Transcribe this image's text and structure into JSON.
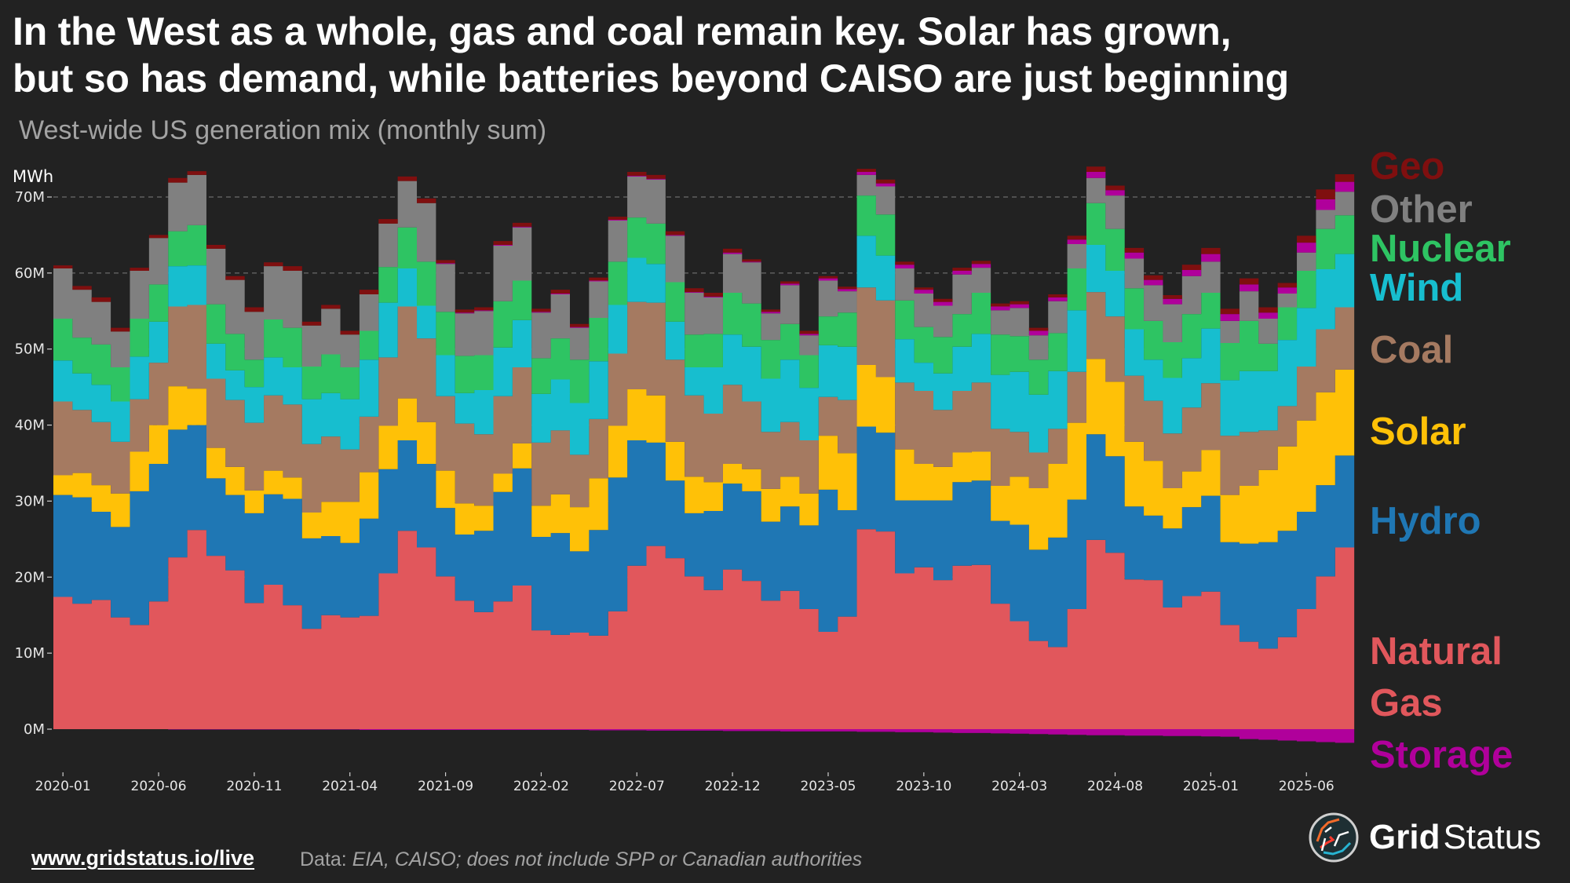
{
  "header": {
    "title_line1": "In the West as a whole, gas and coal remain key. Solar has grown,",
    "title_line2": "but so has demand, while batteries beyond CAISO are just beginning",
    "subtitle": "West-wide US generation mix (monthly sum)"
  },
  "footer": {
    "link": "www.gridstatus.io/live",
    "source_prefix": "Data: ",
    "source_text": "EIA, CAISO; does not include SPP or Canadian authorities"
  },
  "brand": {
    "name_bold": "Grid",
    "name_light": "Status",
    "logo_icon": "grid-status-globe-icon"
  },
  "chart_data": {
    "type": "area",
    "stacked": true,
    "step": true,
    "title": "West-wide US generation mix (monthly sum)",
    "ylabel": "MWh",
    "xlabel": "",
    "ylim": [
      -3,
      75
    ],
    "y_unit_scale": "millions",
    "yticks": [
      0,
      10,
      20,
      30,
      40,
      50,
      60,
      70
    ],
    "ytick_labels": [
      "0M",
      "10M",
      "20M",
      "30M",
      "40M",
      "50M",
      "60M",
      "70M"
    ],
    "xtick_labels": [
      "2020-01",
      "2020-06",
      "2020-11",
      "2021-04",
      "2021-09",
      "2022-02",
      "2022-07",
      "2022-12",
      "2023-05",
      "2023-10",
      "2024-03",
      "2024-08",
      "2025-01",
      "2025-06"
    ],
    "grid": "horizontal dashed",
    "legend_placement": "right (direct labels)",
    "x": [
      "2020-01",
      "2020-02",
      "2020-03",
      "2020-04",
      "2020-05",
      "2020-06",
      "2020-07",
      "2020-08",
      "2020-09",
      "2020-10",
      "2020-11",
      "2020-12",
      "2021-01",
      "2021-02",
      "2021-03",
      "2021-04",
      "2021-05",
      "2021-06",
      "2021-07",
      "2021-08",
      "2021-09",
      "2021-10",
      "2021-11",
      "2021-12",
      "2022-01",
      "2022-02",
      "2022-03",
      "2022-04",
      "2022-05",
      "2022-06",
      "2022-07",
      "2022-08",
      "2022-09",
      "2022-10",
      "2022-11",
      "2022-12",
      "2023-01",
      "2023-02",
      "2023-03",
      "2023-04",
      "2023-05",
      "2023-06",
      "2023-07",
      "2023-08",
      "2023-09",
      "2023-10",
      "2023-11",
      "2023-12",
      "2024-01",
      "2024-02",
      "2024-03",
      "2024-04",
      "2024-05",
      "2024-06",
      "2024-07",
      "2024-08",
      "2024-09",
      "2024-10",
      "2024-11",
      "2024-12",
      "2025-01",
      "2025-02",
      "2025-03",
      "2025-04",
      "2025-05",
      "2025-06",
      "2025-07",
      "2025-08"
    ],
    "cumulative_tops_M": {
      "Natural Gas": [
        17.4,
        16.5,
        17.0,
        14.7,
        13.7,
        16.8,
        22.6,
        26.2,
        22.8,
        20.9,
        16.6,
        19.0,
        16.3,
        13.2,
        15.0,
        14.7,
        14.9,
        20.5,
        26.1,
        23.9,
        20.1,
        16.9,
        15.4,
        16.8,
        18.9,
        13.0,
        12.4,
        12.7,
        12.3,
        15.5,
        21.5,
        24.1,
        22.5,
        20.1,
        18.3,
        21.0,
        19.5,
        16.9,
        18.2,
        15.8,
        12.8,
        14.8,
        26.3,
        26.0,
        20.5,
        21.3,
        19.6,
        21.5,
        21.6,
        16.5,
        14.2,
        11.6,
        10.8,
        15.8,
        24.9,
        23.2,
        19.7,
        19.6,
        16.0,
        17.5,
        18.1,
        13.7,
        11.5,
        10.6,
        12.1,
        15.8,
        20.1,
        23.9
      ],
      "Hydro": [
        30.8,
        30.5,
        28.6,
        26.6,
        31.3,
        34.9,
        39.4,
        40.0,
        33.0,
        30.8,
        28.4,
        30.9,
        30.3,
        25.1,
        25.4,
        24.5,
        27.7,
        34.2,
        38.0,
        34.9,
        29.1,
        25.6,
        26.1,
        31.2,
        34.3,
        25.3,
        25.8,
        23.4,
        26.2,
        33.1,
        38.0,
        37.7,
        32.7,
        28.4,
        28.7,
        32.3,
        31.3,
        27.3,
        29.3,
        26.8,
        31.5,
        28.8,
        39.8,
        39.0,
        30.1,
        30.1,
        30.1,
        32.5,
        32.7,
        27.4,
        26.9,
        23.6,
        25.2,
        30.2,
        38.8,
        35.9,
        29.3,
        28.1,
        26.4,
        29.2,
        30.7,
        24.6,
        24.4,
        24.6,
        26.1,
        28.6,
        32.1,
        36.0
      ],
      "Solar": [
        33.4,
        33.7,
        32.1,
        31.0,
        36.5,
        40.0,
        45.1,
        44.8,
        37.0,
        34.5,
        31.4,
        34.0,
        33.1,
        28.5,
        29.9,
        29.9,
        33.8,
        39.9,
        43.5,
        40.4,
        34.0,
        29.7,
        29.4,
        33.6,
        37.6,
        29.4,
        30.9,
        29.2,
        33.0,
        39.9,
        44.7,
        43.9,
        37.8,
        33.2,
        32.5,
        34.9,
        34.2,
        31.6,
        33.2,
        31.0,
        38.6,
        36.3,
        47.9,
        46.3,
        36.8,
        34.9,
        34.5,
        36.4,
        36.5,
        32.0,
        33.2,
        31.7,
        34.9,
        40.3,
        48.7,
        45.7,
        37.8,
        35.3,
        31.7,
        33.9,
        36.7,
        30.8,
        32.0,
        34.1,
        37.2,
        40.6,
        44.3,
        47.3
      ],
      "Coal": [
        43.1,
        42.0,
        40.4,
        37.8,
        43.4,
        48.2,
        55.6,
        55.8,
        46.1,
        43.3,
        40.3,
        43.9,
        42.7,
        37.5,
        38.5,
        36.8,
        41.1,
        48.9,
        55.6,
        51.4,
        43.8,
        40.2,
        38.8,
        43.8,
        47.6,
        37.7,
        39.3,
        36.1,
        40.8,
        49.4,
        56.2,
        56.1,
        48.6,
        43.9,
        41.5,
        45.3,
        43.1,
        39.1,
        40.4,
        38.0,
        43.7,
        43.3,
        58.1,
        56.4,
        45.6,
        44.5,
        42.0,
        44.5,
        45.6,
        39.5,
        39.1,
        36.4,
        39.5,
        47.0,
        57.5,
        54.3,
        46.5,
        43.2,
        38.9,
        42.3,
        45.5,
        38.6,
        39.1,
        39.3,
        42.5,
        47.7,
        52.6,
        55.5
      ],
      "Wind": [
        48.5,
        46.8,
        45.3,
        43.1,
        49.0,
        53.6,
        60.9,
        61.0,
        50.7,
        47.2,
        45.0,
        48.9,
        47.6,
        43.4,
        44.2,
        43.4,
        48.6,
        56.1,
        60.6,
        55.7,
        49.2,
        44.2,
        44.6,
        50.2,
        53.8,
        44.1,
        46.0,
        42.9,
        48.4,
        55.8,
        62.0,
        61.2,
        53.6,
        47.6,
        47.6,
        51.9,
        50.3,
        46.1,
        48.6,
        44.9,
        50.5,
        50.3,
        64.9,
        62.3,
        51.3,
        48.2,
        46.8,
        50.3,
        52.0,
        46.6,
        47.0,
        44.0,
        47.1,
        55.1,
        63.7,
        60.3,
        52.6,
        48.6,
        46.2,
        48.8,
        52.7,
        45.9,
        47.1,
        47.1,
        51.2,
        55.4,
        60.5,
        62.5
      ],
      "Nuclear": [
        54.0,
        51.5,
        50.6,
        47.6,
        54.0,
        58.5,
        65.5,
        66.3,
        55.9,
        52.0,
        48.6,
        53.9,
        52.8,
        47.7,
        49.3,
        47.6,
        52.4,
        60.8,
        66.0,
        61.5,
        54.9,
        49.1,
        49.2,
        56.3,
        59.0,
        48.8,
        51.4,
        48.6,
        54.1,
        61.5,
        67.3,
        66.5,
        58.8,
        51.9,
        52.0,
        57.4,
        56.0,
        51.2,
        53.3,
        49.2,
        54.3,
        54.8,
        70.2,
        67.7,
        56.4,
        52.9,
        51.6,
        54.6,
        57.4,
        51.9,
        51.7,
        48.6,
        52.1,
        60.6,
        69.2,
        65.8,
        58.0,
        53.7,
        50.9,
        54.6,
        57.4,
        50.8,
        53.7,
        50.7,
        55.5,
        60.3,
        65.8,
        67.6
      ],
      "Other": [
        60.6,
        57.8,
        56.2,
        52.3,
        60.3,
        64.6,
        71.9,
        72.9,
        63.2,
        59.1,
        54.9,
        60.9,
        60.3,
        53.1,
        55.3,
        51.9,
        57.2,
        66.5,
        72.1,
        69.2,
        61.2,
        54.7,
        55.0,
        63.6,
        66.0,
        54.8,
        57.2,
        52.8,
        58.9,
        66.9,
        72.7,
        72.3,
        64.9,
        57.4,
        56.8,
        62.5,
        61.4,
        54.7,
        58.4,
        51.8,
        59.0,
        57.6,
        72.9,
        71.4,
        60.6,
        57.3,
        55.7,
        59.8,
        60.7,
        55.1,
        55.4,
        51.8,
        56.3,
        63.8,
        72.5,
        70.2,
        61.9,
        58.4,
        55.9,
        59.6,
        61.5,
        53.7,
        57.6,
        54.0,
        57.3,
        62.7,
        68.3,
        70.7
      ],
      "Storage": [
        60.6,
        57.8,
        56.2,
        52.3,
        60.3,
        64.6,
        71.9,
        72.9,
        63.2,
        59.1,
        54.9,
        60.9,
        60.3,
        53.1,
        55.3,
        51.9,
        57.2,
        66.5,
        72.1,
        69.2,
        61.3,
        54.8,
        55.1,
        63.7,
        66.1,
        54.9,
        57.3,
        52.9,
        59.0,
        67.0,
        72.8,
        72.4,
        65.0,
        57.5,
        56.9,
        62.7,
        61.5,
        54.9,
        58.6,
        52.0,
        59.3,
        57.9,
        73.3,
        71.8,
        61.1,
        57.8,
        56.2,
        60.3,
        61.2,
        55.6,
        55.9,
        52.4,
        56.8,
        64.4,
        73.3,
        70.9,
        62.7,
        59.1,
        56.6,
        60.4,
        62.5,
        54.6,
        58.5,
        54.8,
        58.1,
        64.0,
        69.7,
        72.0
      ],
      "Geo": [
        61.0,
        58.3,
        56.8,
        52.8,
        60.7,
        65.0,
        72.5,
        73.4,
        63.7,
        59.6,
        55.5,
        61.4,
        60.9,
        53.6,
        55.8,
        52.4,
        57.8,
        67.1,
        72.7,
        69.8,
        61.7,
        55.2,
        55.5,
        64.2,
        66.6,
        55.3,
        57.8,
        53.3,
        59.4,
        67.4,
        73.3,
        72.9,
        65.5,
        58.0,
        57.4,
        63.2,
        61.8,
        55.2,
        58.9,
        52.4,
        59.6,
        58.2,
        73.7,
        72.3,
        61.5,
        58.1,
        56.6,
        60.7,
        61.6,
        56.0,
        56.3,
        52.8,
        57.2,
        64.9,
        74.0,
        71.5,
        63.3,
        59.7,
        57.1,
        61.1,
        63.3,
        55.3,
        59.3,
        55.5,
        58.7,
        64.9,
        71.0,
        73.0
      ]
    },
    "storage_charge_M": [
      0.0,
      0.0,
      0.0,
      0.0,
      0.0,
      0.0,
      -0.05,
      -0.05,
      -0.05,
      -0.05,
      -0.05,
      -0.05,
      -0.05,
      -0.05,
      -0.05,
      -0.05,
      -0.1,
      -0.1,
      -0.1,
      -0.1,
      -0.1,
      -0.1,
      -0.1,
      -0.1,
      -0.1,
      -0.1,
      -0.1,
      -0.1,
      -0.15,
      -0.15,
      -0.15,
      -0.2,
      -0.2,
      -0.2,
      -0.2,
      -0.25,
      -0.25,
      -0.25,
      -0.3,
      -0.3,
      -0.3,
      -0.3,
      -0.35,
      -0.35,
      -0.4,
      -0.4,
      -0.45,
      -0.5,
      -0.5,
      -0.55,
      -0.6,
      -0.65,
      -0.7,
      -0.75,
      -0.8,
      -0.8,
      -0.85,
      -0.85,
      -0.9,
      -0.9,
      -0.95,
      -1.0,
      -1.3,
      -1.4,
      -1.5,
      -1.6,
      -1.7,
      -1.8
    ],
    "series_order_bottom_to_top": [
      "Natural Gas",
      "Hydro",
      "Solar",
      "Coal",
      "Wind",
      "Nuclear",
      "Other",
      "Storage",
      "Geo"
    ],
    "series": [
      {
        "name": "Geo",
        "label": "Geo",
        "color": "#7f0f0f"
      },
      {
        "name": "Other",
        "label": "Other",
        "color": "#808080"
      },
      {
        "name": "Nuclear",
        "label": "Nuclear",
        "color": "#2ec463"
      },
      {
        "name": "Wind",
        "label": "Wind",
        "color": "#17becf"
      },
      {
        "name": "Coal",
        "label": "Coal",
        "color": "#a57a61"
      },
      {
        "name": "Solar",
        "label": "Solar",
        "color": "#ffc107"
      },
      {
        "name": "Hydro",
        "label": "Hydro",
        "color": "#1f77b4"
      },
      {
        "name": "Natural Gas",
        "label": "Natural\nGas",
        "label_line1": "Natural",
        "label_line2": "Gas",
        "color": "#e1575c"
      },
      {
        "name": "Storage",
        "label": "Storage",
        "color": "#b0009b"
      }
    ]
  }
}
